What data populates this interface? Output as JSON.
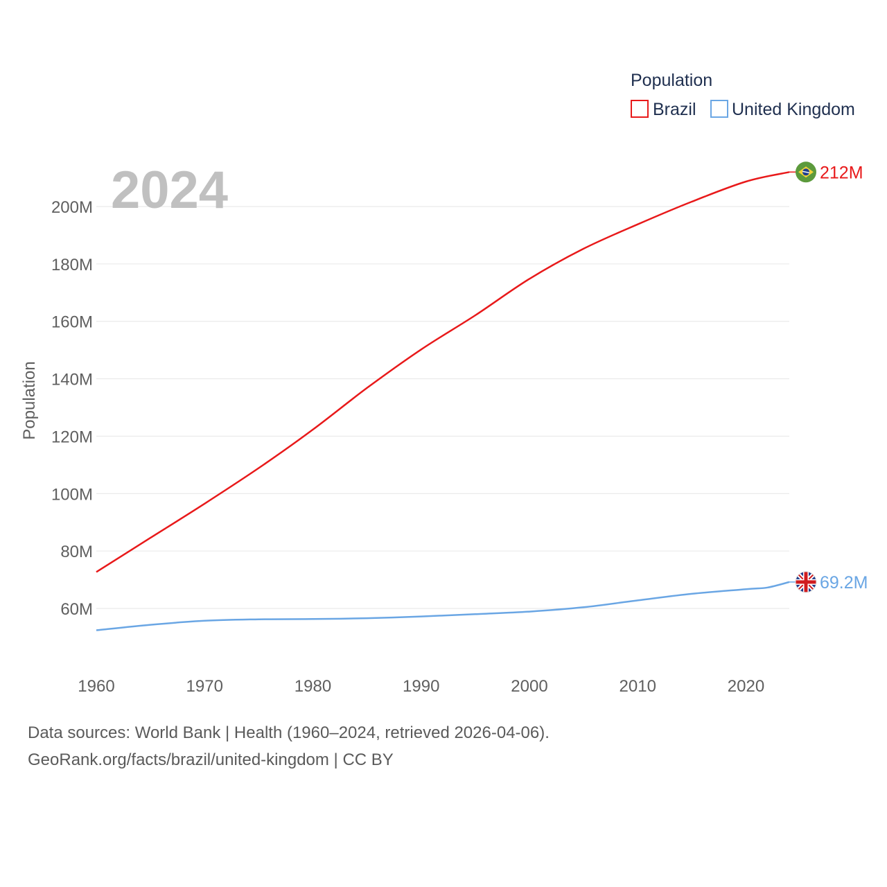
{
  "chart_data": {
    "type": "line",
    "legend_title": "Population",
    "current_year": "2024",
    "ylabel": "Population",
    "xlim": [
      1960,
      2024
    ],
    "ylim": [
      45000000,
      215000000
    ],
    "x_ticks": [
      1960,
      1970,
      1980,
      1990,
      2000,
      2010,
      2020
    ],
    "y_ticks": [
      60000000,
      80000000,
      100000000,
      120000000,
      140000000,
      160000000,
      180000000,
      200000000
    ],
    "y_tick_labels": [
      "60M",
      "80M",
      "100M",
      "120M",
      "140M",
      "160M",
      "180M",
      "200M"
    ],
    "series": [
      {
        "name": "Brazil",
        "color": "#e8191a",
        "end_label": "212M",
        "flag": "brazil-flag",
        "x": [
          1960,
          1965,
          1970,
          1975,
          1980,
          1985,
          1990,
          1995,
          2000,
          2005,
          2010,
          2015,
          2020,
          2024
        ],
        "values": [
          72700000,
          84600000,
          96500000,
          108900000,
          122300000,
          136800000,
          150200000,
          162100000,
          174800000,
          185300000,
          193800000,
          201700000,
          208700000,
          212000000
        ]
      },
      {
        "name": "United Kingdom",
        "color": "#6aa6e4",
        "end_label": "69.2M",
        "flag": "uk-flag",
        "x": [
          1960,
          1965,
          1970,
          1975,
          1980,
          1985,
          1990,
          1995,
          2000,
          2005,
          2010,
          2015,
          2020,
          2022,
          2024
        ],
        "values": [
          52400000,
          54300000,
          55700000,
          56200000,
          56300000,
          56600000,
          57200000,
          58000000,
          58900000,
          60400000,
          62800000,
          65100000,
          66700000,
          67300000,
          69200000
        ]
      }
    ]
  },
  "footer": {
    "source_line": "Data sources: World Bank | Health (1960–2024, retrieved 2026-04-06).",
    "credit_line": "GeoRank.org/facts/brazil/united-kingdom | CC BY"
  }
}
